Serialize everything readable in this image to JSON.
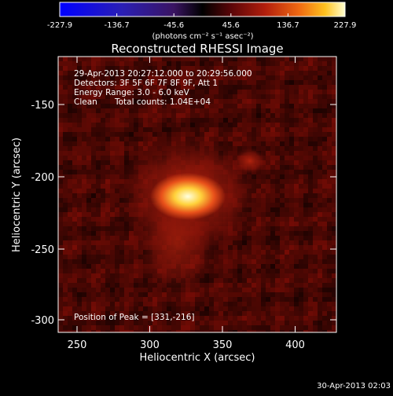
{
  "colorbar": {
    "ticks": [
      "-227.9",
      "-136.7",
      "-45.6",
      "45.6",
      "136.7",
      "227.9"
    ],
    "units": "(photons cm⁻² s⁻¹ asec⁻²)"
  },
  "title": "Reconstructed RHESSI Image",
  "info": {
    "time_range": "29-Apr-2013 20:27:12.000 to 20:29:56.000",
    "detectors": "Detectors: 3F 5F 6F 7F 8F 9F, Att 1",
    "energy": "Energy Range: 3.0 - 6.0 keV",
    "method": "Clean",
    "counts": "Total counts: 1.04E+04"
  },
  "peak": "Position of Peak = [331,-216]",
  "axes": {
    "xlabel": "Heliocentric X (arcsec)",
    "ylabel": "Heliocentric Y (arcsec)",
    "xticks": [
      "250",
      "300",
      "350",
      "400"
    ],
    "yticks": [
      "-150",
      "-200",
      "-250",
      "-300"
    ]
  },
  "footer": "30-Apr-2013 02:03",
  "colors": {
    "background": "#000000",
    "foreground": "#ffffff"
  }
}
